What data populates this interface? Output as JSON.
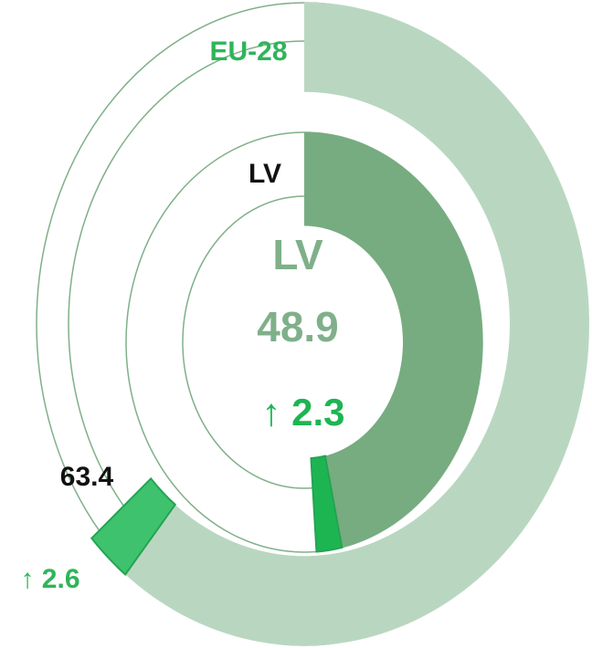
{
  "chart_data": {
    "type": "radial",
    "ylim": [
      0,
      100
    ],
    "series": [
      {
        "name": "EU-28",
        "color": "#b9d7c0",
        "value": 63.4,
        "change": 2.6,
        "change_label": "↑ 2.6",
        "change_color": "#3ec26e"
      },
      {
        "name": "LV",
        "color": "#76ac80",
        "value": 48.9,
        "change": 2.3,
        "change_label": "↑ 2.3",
        "change_color": "#1db552"
      }
    ]
  }
}
